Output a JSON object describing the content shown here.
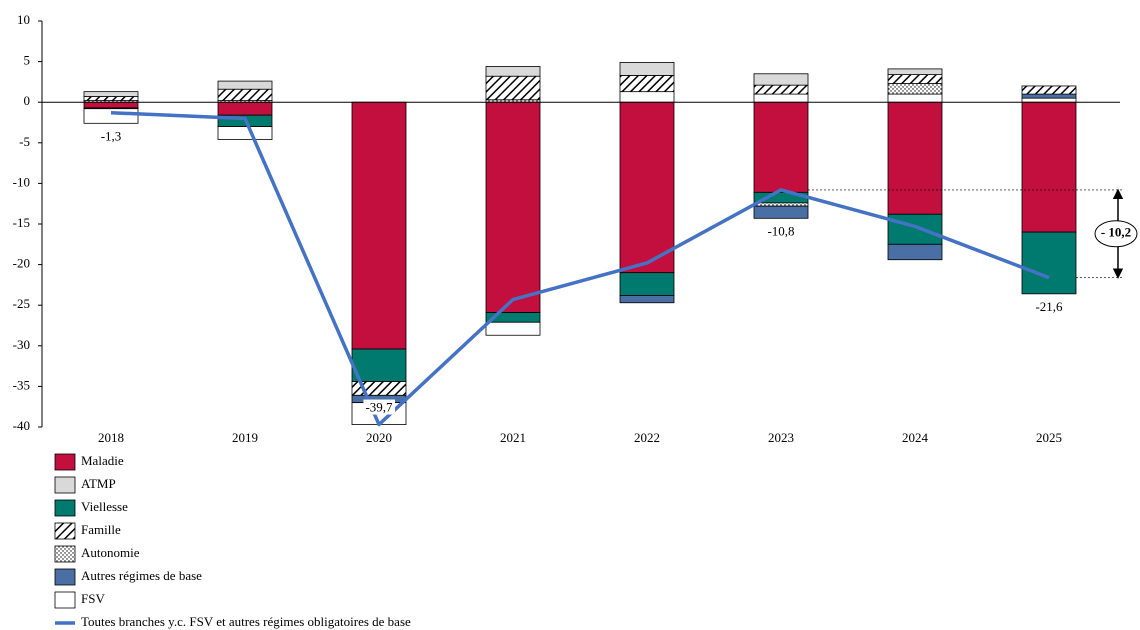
{
  "chart_data": {
    "type": "bar",
    "categories": [
      "2018",
      "2019",
      "2020",
      "2021",
      "2022",
      "2023",
      "2024",
      "2025"
    ],
    "series": [
      {
        "name": "Maladie",
        "color": "#c20f3e",
        "values": [
          -0.7,
          -1.6,
          -30.4,
          -25.9,
          -21,
          -11.1,
          -13.8,
          -16
        ]
      },
      {
        "name": "ATMP",
        "color": "#d9d9d9",
        "values": [
          0.6,
          1,
          0,
          1.2,
          1.6,
          1.4,
          0.7,
          0
        ]
      },
      {
        "name": "Viellesse",
        "color": "#007a6e",
        "values": [
          -0.1,
          -1.4,
          -4,
          -1.2,
          -2.8,
          -1.3,
          -3.7,
          -7.6
        ]
      },
      {
        "name": "Famille",
        "color": "#000000",
        "pattern": "hatch",
        "values": [
          0.5,
          1.4,
          -1.7,
          2.9,
          2,
          1.1,
          1.1,
          1
        ]
      },
      {
        "name": "Autonomie",
        "color": "#000000",
        "pattern": "dots",
        "values": [
          0.2,
          0.2,
          0,
          0.3,
          0,
          -0.4,
          1.3,
          0
        ]
      },
      {
        "name": "Autres régimes de base",
        "color": "#4a6fa5",
        "values": [
          0,
          0,
          -0.9,
          0,
          -0.9,
          -1.5,
          -1.9,
          0.5
        ]
      },
      {
        "name": "FSV",
        "color": "#ffffff",
        "values": [
          -1.8,
          -1.6,
          -2.7,
          -1.6,
          1.3,
          1,
          1,
          0.5
        ]
      }
    ],
    "line": {
      "name": "Toutes branches y.c. FSV et autres régimes obligatoires de base",
      "color": "#4472c4",
      "values": [
        -1.3,
        -2,
        -39.7,
        -24.3,
        -19.8,
        -10.8,
        -15.3,
        -21.6
      ],
      "value_labels": [
        "-1,3",
        null,
        "-39,7",
        null,
        null,
        "-10,8",
        null,
        "-21,6"
      ]
    },
    "annotation": "- 10,2",
    "ylim": [
      -40,
      10
    ],
    "yticks": [
      -40,
      -35,
      -30,
      -25,
      -20,
      -15,
      -10,
      -5,
      0,
      5,
      10
    ]
  }
}
